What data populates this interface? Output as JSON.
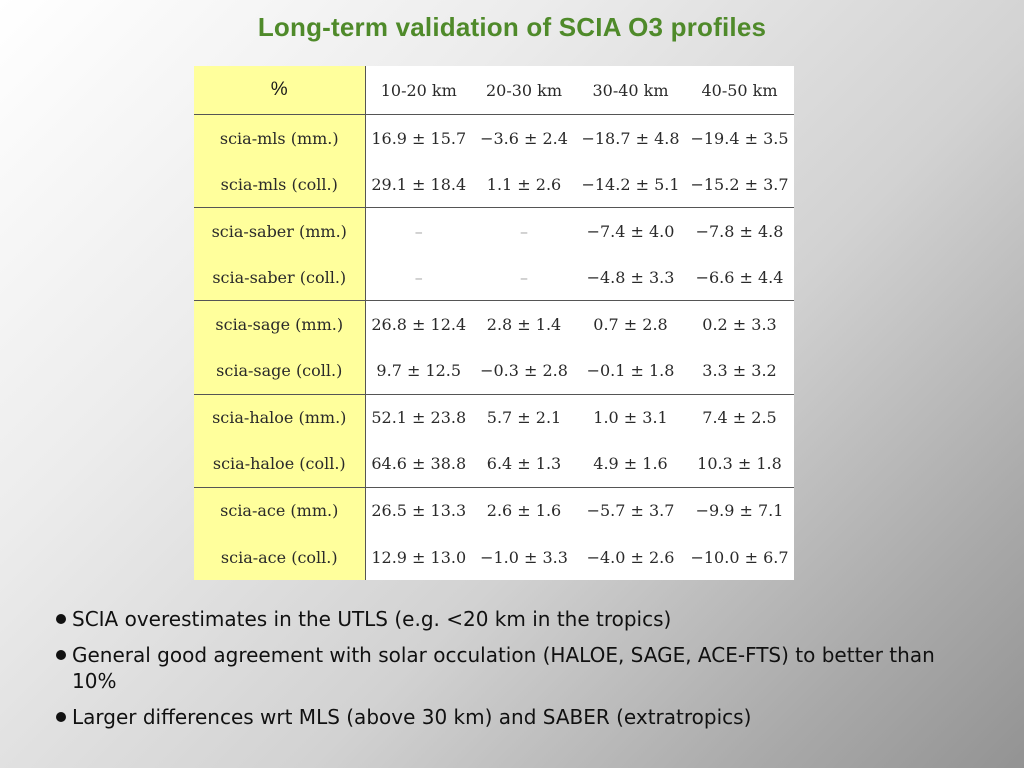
{
  "slide": {
    "title": "Long-term validation of SCIA O3 profiles"
  },
  "table": {
    "corner": "%",
    "columns": [
      "10-20 km",
      "20-30 km",
      "30-40 km",
      "40-50 km"
    ],
    "rows": [
      {
        "label": "scia-mls (mm.)",
        "values": [
          "16.9 ± 15.7",
          "−3.6 ± 2.4",
          "−18.7 ± 4.8",
          "−19.4 ± 3.5"
        ]
      },
      {
        "label": "scia-mls (coll.)",
        "values": [
          "29.1 ± 18.4",
          "1.1 ± 2.6",
          "−14.2 ± 5.1",
          "−15.2 ± 3.7"
        ]
      },
      {
        "label": "scia-saber (mm.)",
        "values": [
          "–",
          "–",
          "−7.4 ± 4.0",
          "−7.8 ± 4.8"
        ]
      },
      {
        "label": "scia-saber (coll.)",
        "values": [
          "–",
          "–",
          "−4.8 ± 3.3",
          "−6.6 ± 4.4"
        ]
      },
      {
        "label": "scia-sage (mm.)",
        "values": [
          "26.8 ± 12.4",
          "2.8 ± 1.4",
          "0.7 ± 2.8",
          "0.2 ± 3.3"
        ]
      },
      {
        "label": "scia-sage (coll.)",
        "values": [
          "9.7 ± 12.5",
          "−0.3 ± 2.8",
          "−0.1 ± 1.8",
          "3.3 ± 3.2"
        ]
      },
      {
        "label": "scia-haloe (mm.)",
        "values": [
          "52.1 ± 23.8",
          "5.7 ± 2.1",
          "1.0 ± 3.1",
          "7.4 ± 2.5"
        ]
      },
      {
        "label": "scia-haloe (coll.)",
        "values": [
          "64.6 ± 38.8",
          "6.4 ± 1.3",
          "4.9 ± 1.6",
          "10.3 ± 1.8"
        ]
      },
      {
        "label": "scia-ace (mm.)",
        "values": [
          "26.5 ± 13.3",
          "2.6 ± 1.6",
          "−5.7 ± 3.7",
          "−9.9 ± 7.1"
        ]
      },
      {
        "label": "scia-ace (coll.)",
        "values": [
          "12.9 ± 13.0",
          "−1.0 ± 3.3",
          "−4.0 ± 2.6",
          "−10.0 ± 6.7"
        ]
      }
    ]
  },
  "bullets": [
    "SCIA overestimates in the UTLS (e.g. <20 km in the tropics)",
    "General good agreement with solar occulation (HALOE, SAGE, ACE-FTS) to better than 10%",
    "Larger differences wrt MLS (above 30 km) and SABER (extratropics)"
  ],
  "colors": {
    "title": "#4f8a2a",
    "label_column_bg": "#ffff9c",
    "table_bg": "#ffffff",
    "rule": "#555555"
  }
}
